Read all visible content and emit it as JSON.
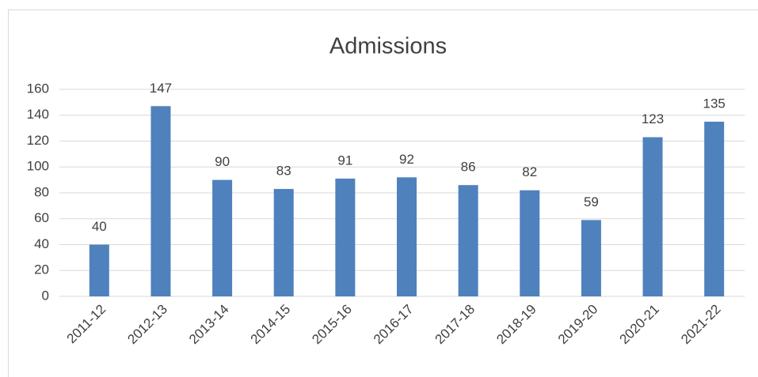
{
  "chart_data": {
    "type": "bar",
    "title": "Admissions",
    "categories": [
      "2011-12",
      "2012-13",
      "2013-14",
      "2014-15",
      "2015-16",
      "2016-17",
      "2017-18",
      "2018-19",
      "2019-20",
      "2020-21",
      "2021-22"
    ],
    "values": [
      40,
      147,
      90,
      83,
      91,
      92,
      86,
      82,
      59,
      123,
      135
    ],
    "color": "#4f81bd",
    "ylim": [
      0,
      160
    ],
    "yticks": [
      0,
      20,
      40,
      60,
      80,
      100,
      120,
      140,
      160
    ],
    "grid": true
  }
}
